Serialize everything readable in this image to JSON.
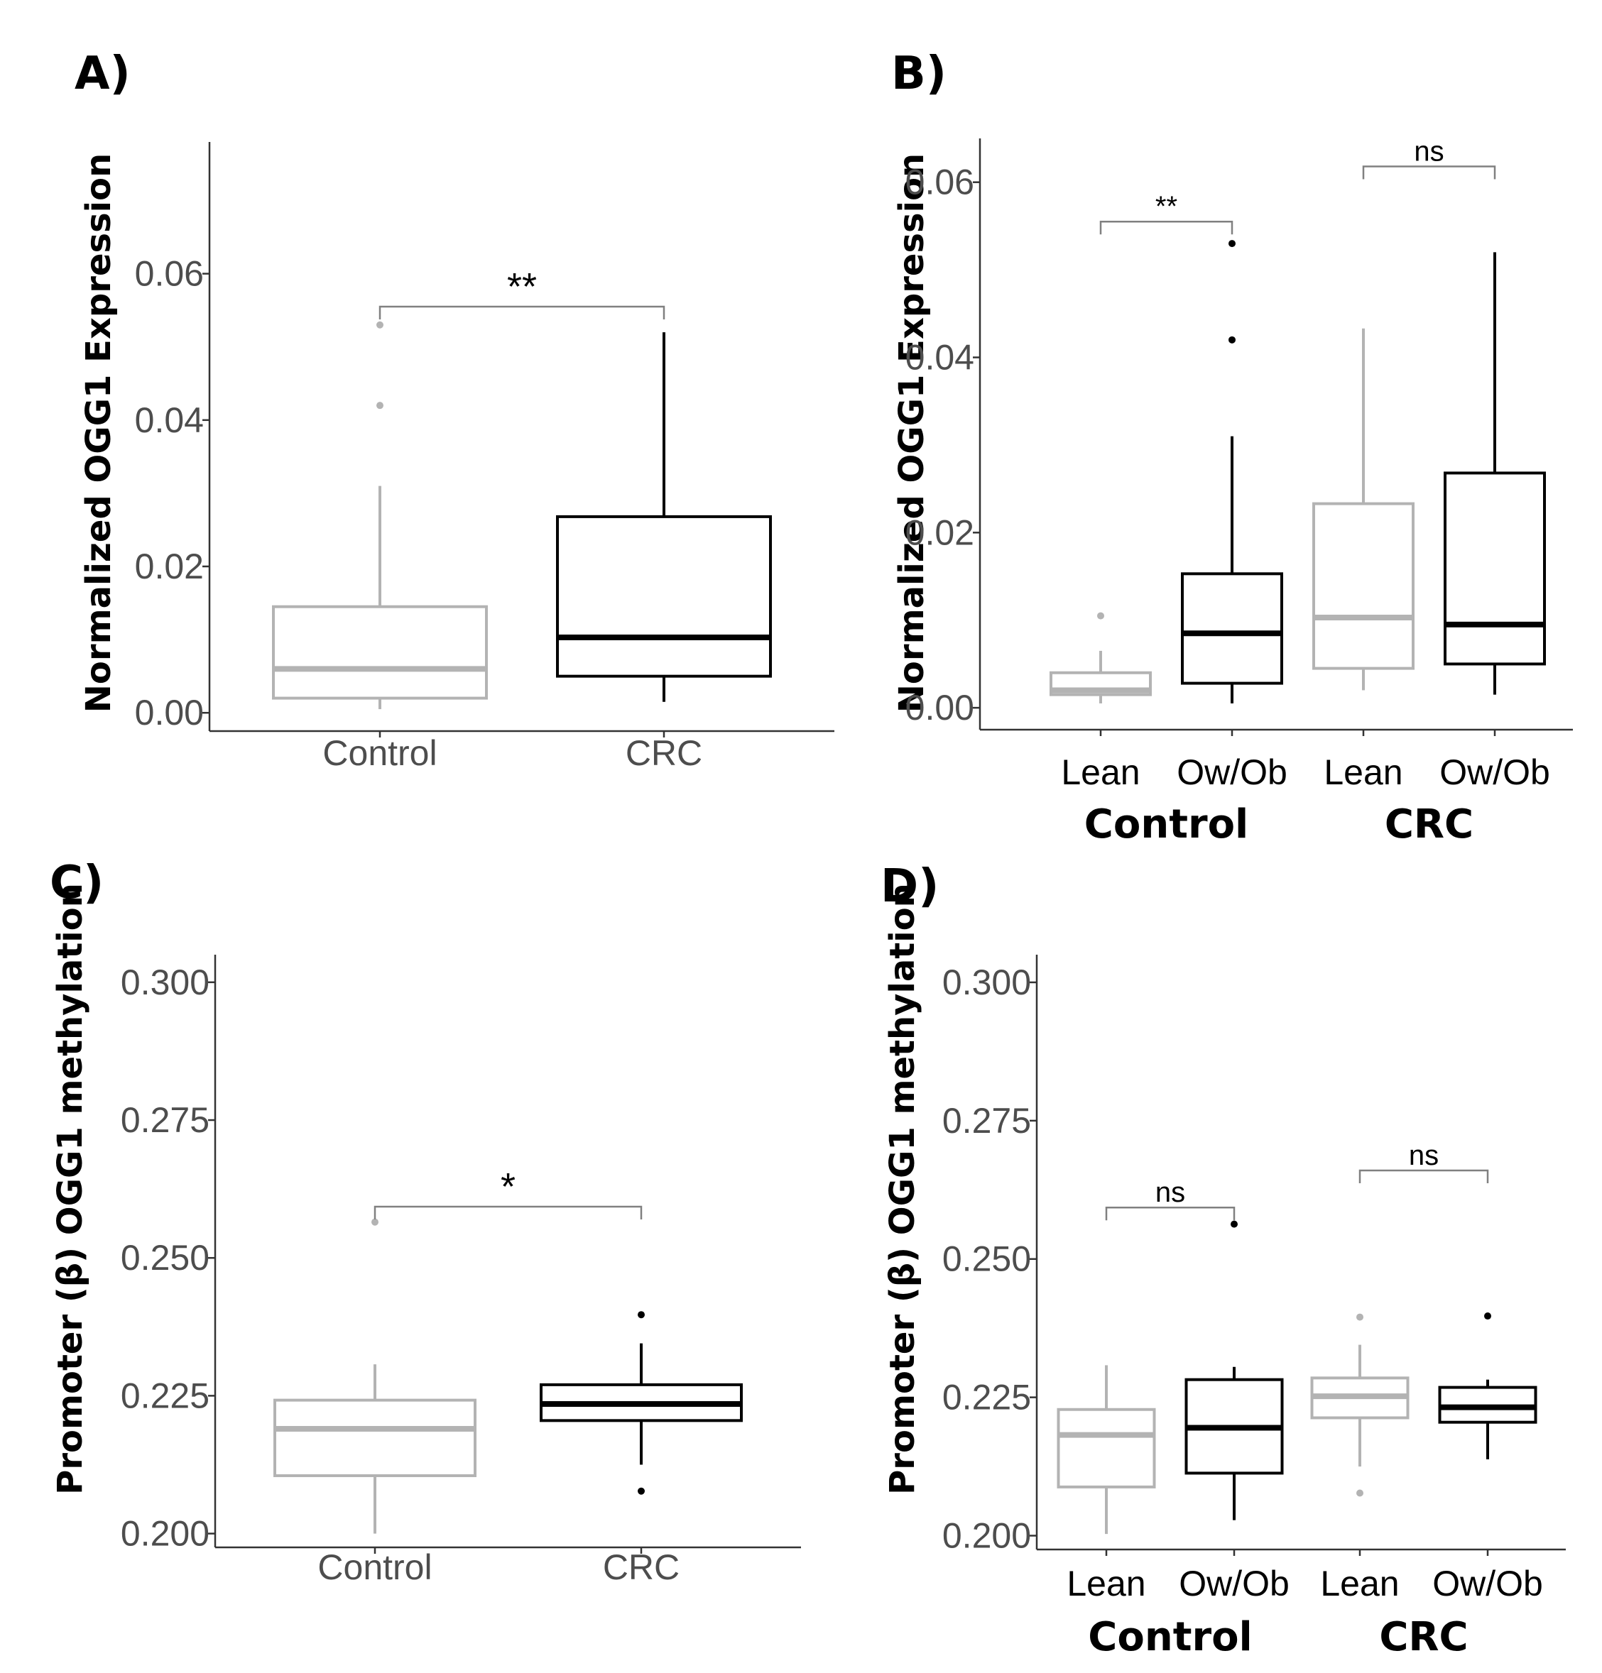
{
  "colors": {
    "grey": "#b3b3b3",
    "black": "#000000",
    "axis": "#333333",
    "tick_text": "#4d4d4d"
  },
  "chart_data": [
    {
      "id": "A",
      "panel_label": "A)",
      "type": "box",
      "ylabel": "Normalized OGG1 Expression",
      "ylim": [
        -0.0025,
        0.078
      ],
      "yticks": [
        0.0,
        0.02,
        0.04,
        0.06
      ],
      "ytick_labels": [
        "0.00",
        "0.02",
        "0.04",
        "0.06"
      ],
      "categories": [
        "Control",
        "CRC"
      ],
      "group_labels": [],
      "boxes": [
        {
          "category": "Control",
          "color": "grey",
          "q1": 0.002,
          "median": 0.006,
          "q3": 0.0145,
          "whisker_low": 0.0005,
          "whisker_high": 0.031,
          "outliers": [
            0.042,
            0.053
          ]
        },
        {
          "category": "CRC",
          "color": "black",
          "q1": 0.005,
          "median": 0.0103,
          "q3": 0.0268,
          "whisker_low": 0.0015,
          "whisker_high": 0.052,
          "outliers": []
        }
      ],
      "comparisons": [
        {
          "from": 0,
          "to": 1,
          "label": "**",
          "y": 0.0555,
          "size": "big"
        }
      ]
    },
    {
      "id": "B",
      "panel_label": "B)",
      "type": "box",
      "ylabel": "Normalized OGG1 Expression",
      "ylim": [
        -0.0025,
        0.065
      ],
      "yticks": [
        0.0,
        0.02,
        0.04,
        0.06
      ],
      "ytick_labels": [
        "0.00",
        "0.02",
        "0.04",
        "0.06"
      ],
      "categories": [
        "Lean",
        "Ow/Ob",
        "Lean",
        "Ow/Ob"
      ],
      "group_labels": [
        "Control",
        "CRC"
      ],
      "boxes": [
        {
          "category": "Lean",
          "group": "Control",
          "color": "grey",
          "q1": 0.0015,
          "median": 0.002,
          "q3": 0.004,
          "whisker_low": 0.0005,
          "whisker_high": 0.0065,
          "outliers": [
            0.0105
          ]
        },
        {
          "category": "Ow/Ob",
          "group": "Control",
          "color": "black",
          "q1": 0.0028,
          "median": 0.0085,
          "q3": 0.0153,
          "whisker_low": 0.0005,
          "whisker_high": 0.031,
          "outliers": [
            0.042,
            0.053
          ]
        },
        {
          "category": "Lean",
          "group": "CRC",
          "color": "grey",
          "q1": 0.0045,
          "median": 0.0103,
          "q3": 0.0233,
          "whisker_low": 0.002,
          "whisker_high": 0.0433,
          "outliers": []
        },
        {
          "category": "Ow/Ob",
          "group": "CRC",
          "color": "black",
          "q1": 0.005,
          "median": 0.0095,
          "q3": 0.0268,
          "whisker_low": 0.0015,
          "whisker_high": 0.052,
          "outliers": []
        }
      ],
      "comparisons": [
        {
          "from": 0,
          "to": 1,
          "label": "**",
          "y": 0.0555,
          "size": "small"
        },
        {
          "from": 2,
          "to": 3,
          "label": "ns",
          "y": 0.0618,
          "size": "small"
        }
      ]
    },
    {
      "id": "C",
      "panel_label": "C)",
      "type": "box",
      "ylabel": "Promoter (β) OGG1 methylation",
      "ylim": [
        0.1975,
        0.305
      ],
      "yticks": [
        0.2,
        0.225,
        0.25,
        0.275,
        0.3
      ],
      "ytick_labels": [
        "0.200",
        "0.225",
        "0.250",
        "0.275",
        "0.300"
      ],
      "categories": [
        "Control",
        "CRC"
      ],
      "group_labels": [],
      "boxes": [
        {
          "category": "Control",
          "color": "grey",
          "q1": 0.2105,
          "median": 0.219,
          "q3": 0.2242,
          "whisker_low": 0.2,
          "whisker_high": 0.2307,
          "outliers": [
            0.2565
          ]
        },
        {
          "category": "CRC",
          "color": "black",
          "q1": 0.2205,
          "median": 0.2235,
          "q3": 0.227,
          "whisker_low": 0.2125,
          "whisker_high": 0.2345,
          "outliers": [
            0.2397,
            0.2077
          ]
        }
      ],
      "comparisons": [
        {
          "from": 0,
          "to": 1,
          "label": "*",
          "y": 0.2593,
          "size": "big"
        }
      ]
    },
    {
      "id": "D",
      "panel_label": "D)",
      "type": "box",
      "ylabel": "Promoter (β) OGG1 methylation",
      "ylim": [
        0.1975,
        0.305
      ],
      "yticks": [
        0.2,
        0.225,
        0.25,
        0.275,
        0.3
      ],
      "ytick_labels": [
        "0.200",
        "0.225",
        "0.250",
        "0.275",
        "0.300"
      ],
      "categories": [
        "Lean",
        "Ow/Ob",
        "Lean",
        "Ow/Ob"
      ],
      "group_labels": [
        "Control",
        "CRC"
      ],
      "boxes": [
        {
          "category": "Lean",
          "group": "Control",
          "color": "grey",
          "q1": 0.2088,
          "median": 0.2182,
          "q3": 0.2228,
          "whisker_low": 0.2003,
          "whisker_high": 0.2308,
          "outliers": []
        },
        {
          "category": "Ow/Ob",
          "group": "Control",
          "color": "black",
          "q1": 0.2113,
          "median": 0.2195,
          "q3": 0.2282,
          "whisker_low": 0.2028,
          "whisker_high": 0.2305,
          "outliers": [
            0.2563
          ]
        },
        {
          "category": "Lean",
          "group": "CRC",
          "color": "grey",
          "q1": 0.2213,
          "median": 0.2252,
          "q3": 0.2285,
          "whisker_low": 0.2125,
          "whisker_high": 0.2345,
          "outliers": [
            0.2395,
            0.2077
          ]
        },
        {
          "category": "Ow/Ob",
          "group": "CRC",
          "color": "black",
          "q1": 0.2205,
          "median": 0.2232,
          "q3": 0.2268,
          "whisker_low": 0.2138,
          "whisker_high": 0.2282,
          "outliers": [
            0.2397
          ]
        }
      ],
      "comparisons": [
        {
          "from": 0,
          "to": 1,
          "label": "ns",
          "y": 0.2593,
          "size": "small"
        },
        {
          "from": 2,
          "to": 3,
          "label": "ns",
          "y": 0.266,
          "size": "small"
        }
      ]
    }
  ]
}
